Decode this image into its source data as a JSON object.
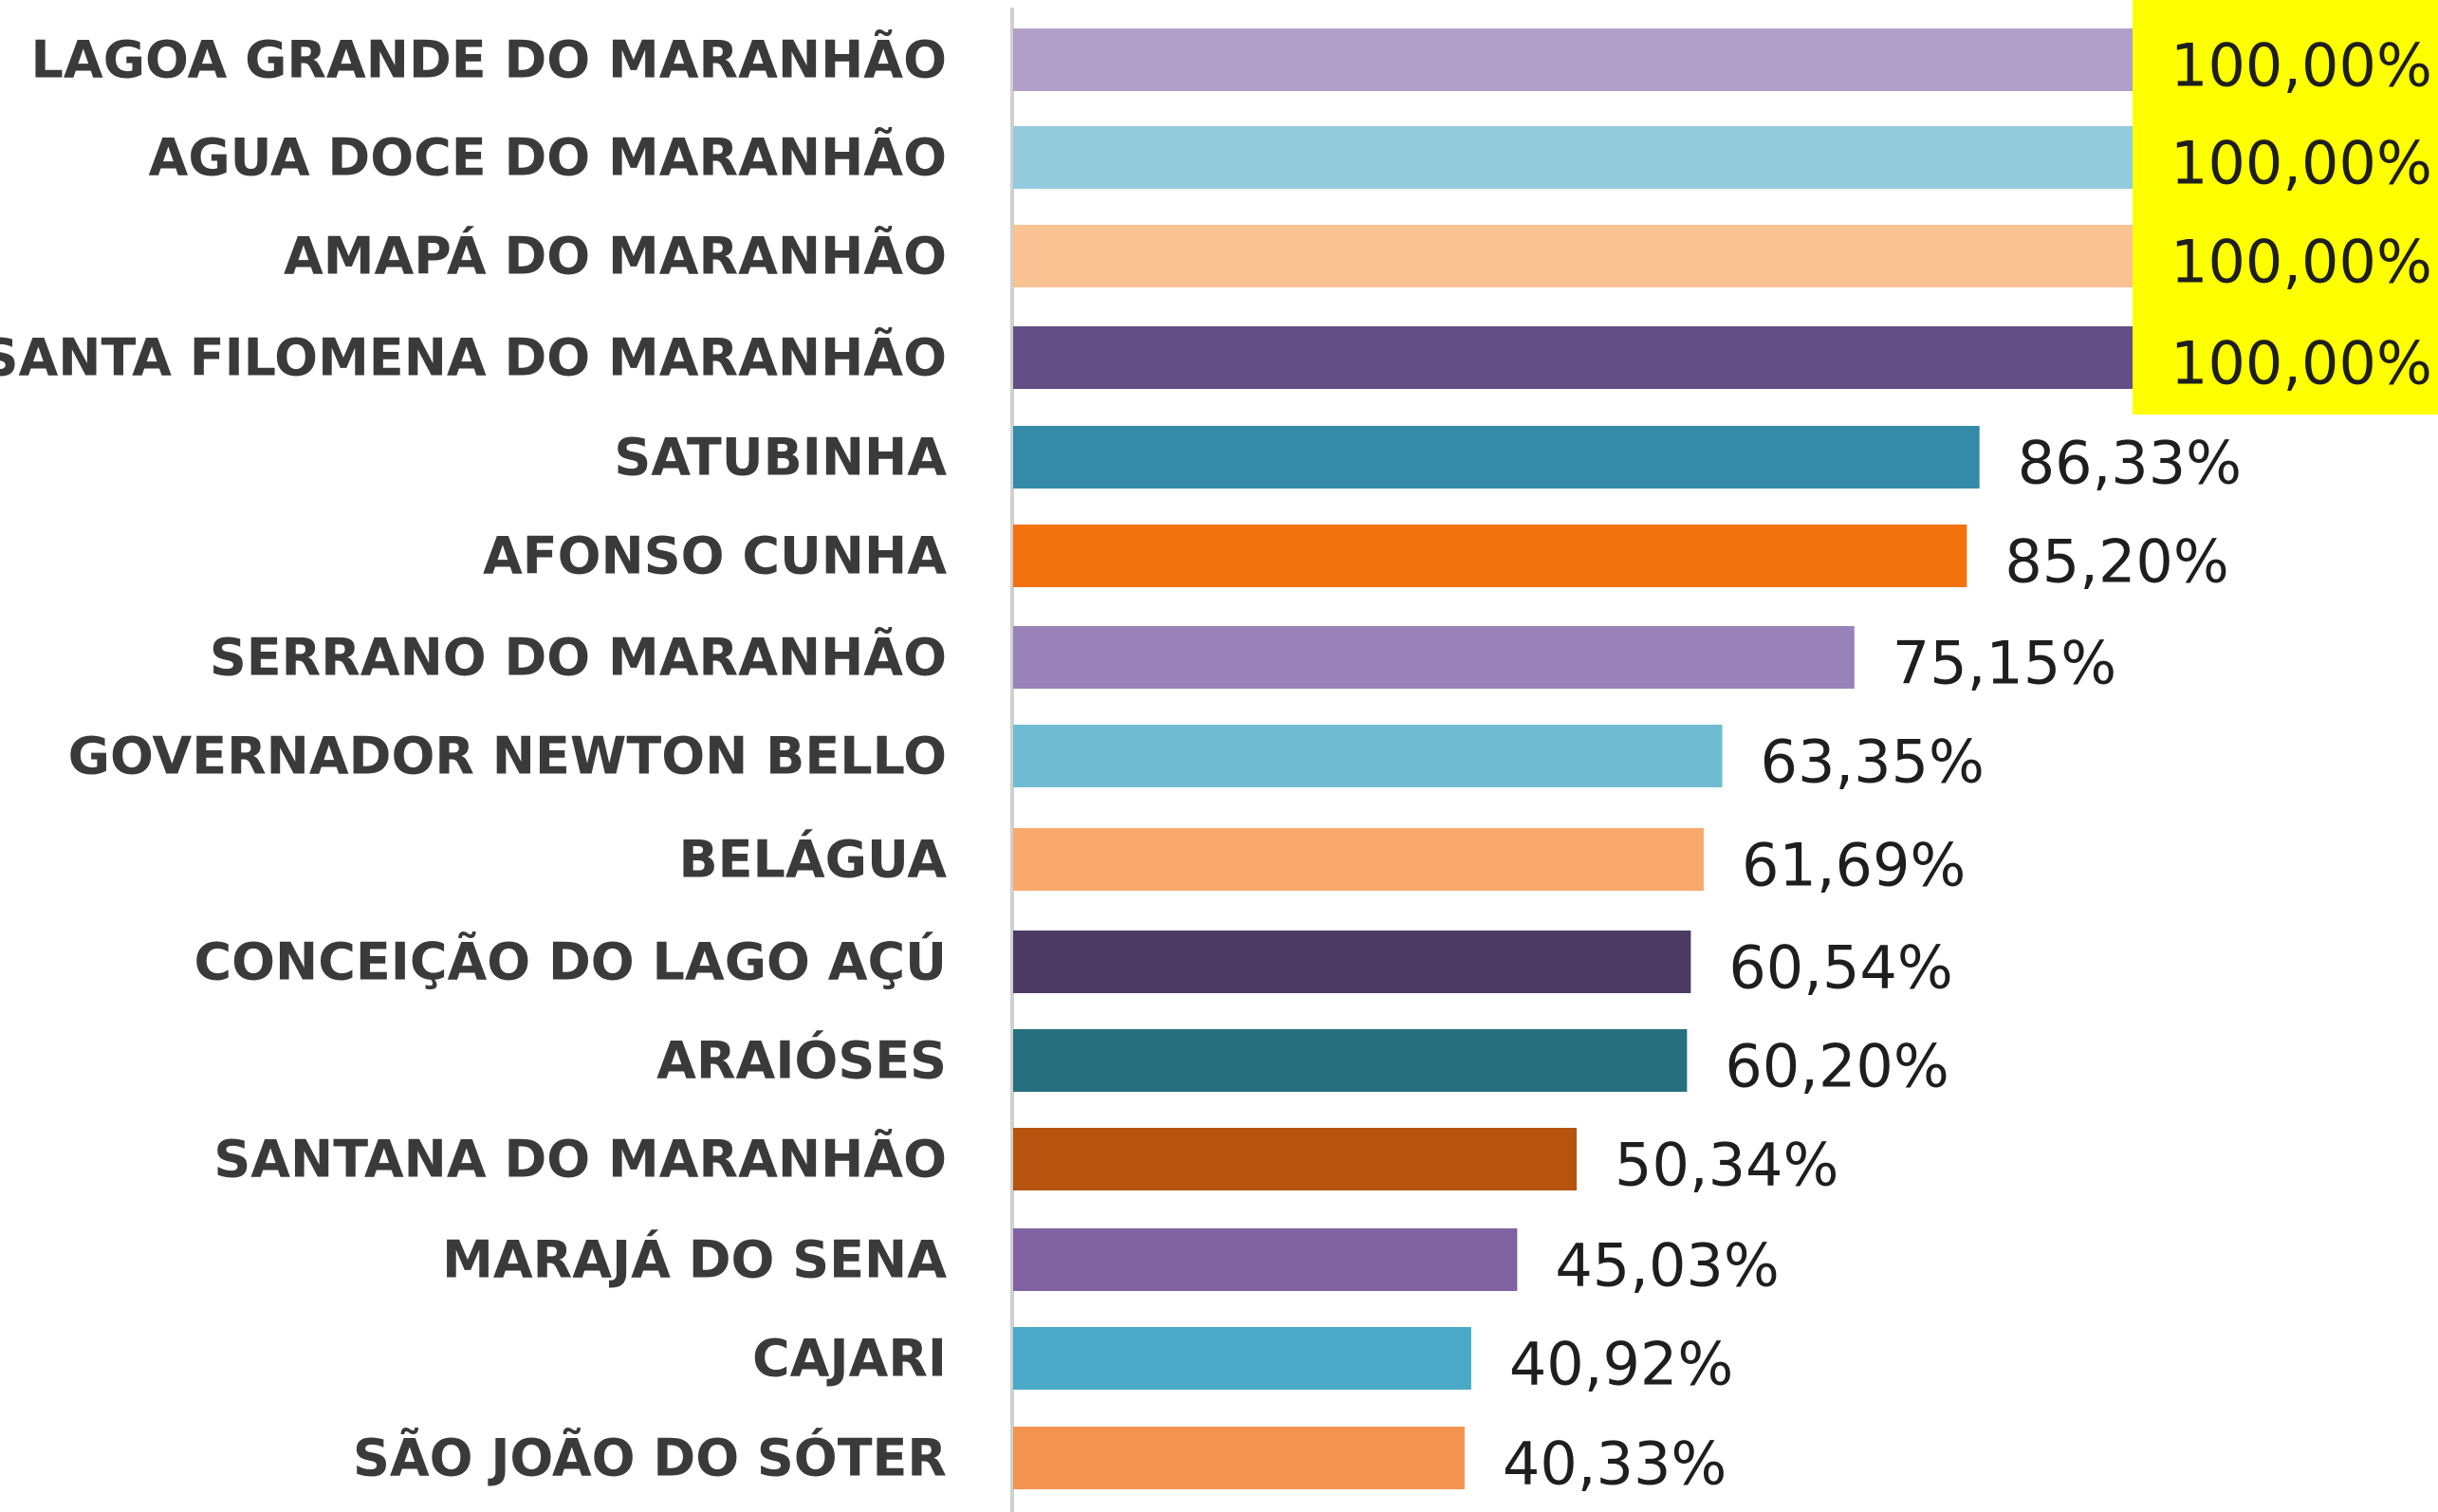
{
  "chart_data": {
    "type": "bar",
    "orientation": "horizontal",
    "categories": [
      "LAGOA GRANDE DO MARANHÃO",
      "AGUA DOCE DO MARANHÃO",
      "AMAPÁ DO MARANHÃO",
      "SANTA FILOMENA DO MARANHÃO",
      "SATUBINHA",
      "AFONSO CUNHA",
      "SERRANO DO MARANHÃO",
      "GOVERNADOR NEWTON BELLO",
      "BELÁGUA",
      "CONCEIÇÃO DO LAGO AÇÚ",
      "ARAIÓSES",
      "SANTANA DO MARANHÃO",
      "MARAJÁ DO SENA",
      "CAJARI",
      "SÃO JOÃO DO SÓTER"
    ],
    "values": [
      100.0,
      100.0,
      100.0,
      100.0,
      86.33,
      85.2,
      75.15,
      63.35,
      61.69,
      60.54,
      60.2,
      50.34,
      45.03,
      40.92,
      40.33
    ],
    "value_labels": [
      "100,00%",
      "100,00%",
      "100,00%",
      "100,00%",
      "86,33%",
      "85,20%",
      "75,15%",
      "63,35%",
      "61,69%",
      "60,54%",
      "60,20%",
      "50,34%",
      "45,03%",
      "40,92%",
      "40,33%"
    ],
    "bar_colors": [
      "#b09fc8",
      "#93cbdd",
      "#f9c293",
      "#634f85",
      "#338ba7",
      "#f2720e",
      "#9982b8",
      "#6fbcd2",
      "#f8a96b",
      "#4d3a63",
      "#266f7e",
      "#b5530f",
      "#8062a0",
      "#49a9c6",
      "#f39451"
    ],
    "highlight_color": "#ffff00",
    "highlighted_labels": [
      0,
      1,
      2,
      3
    ],
    "xlim": [
      0,
      100
    ],
    "grid": false,
    "legend": "none"
  }
}
